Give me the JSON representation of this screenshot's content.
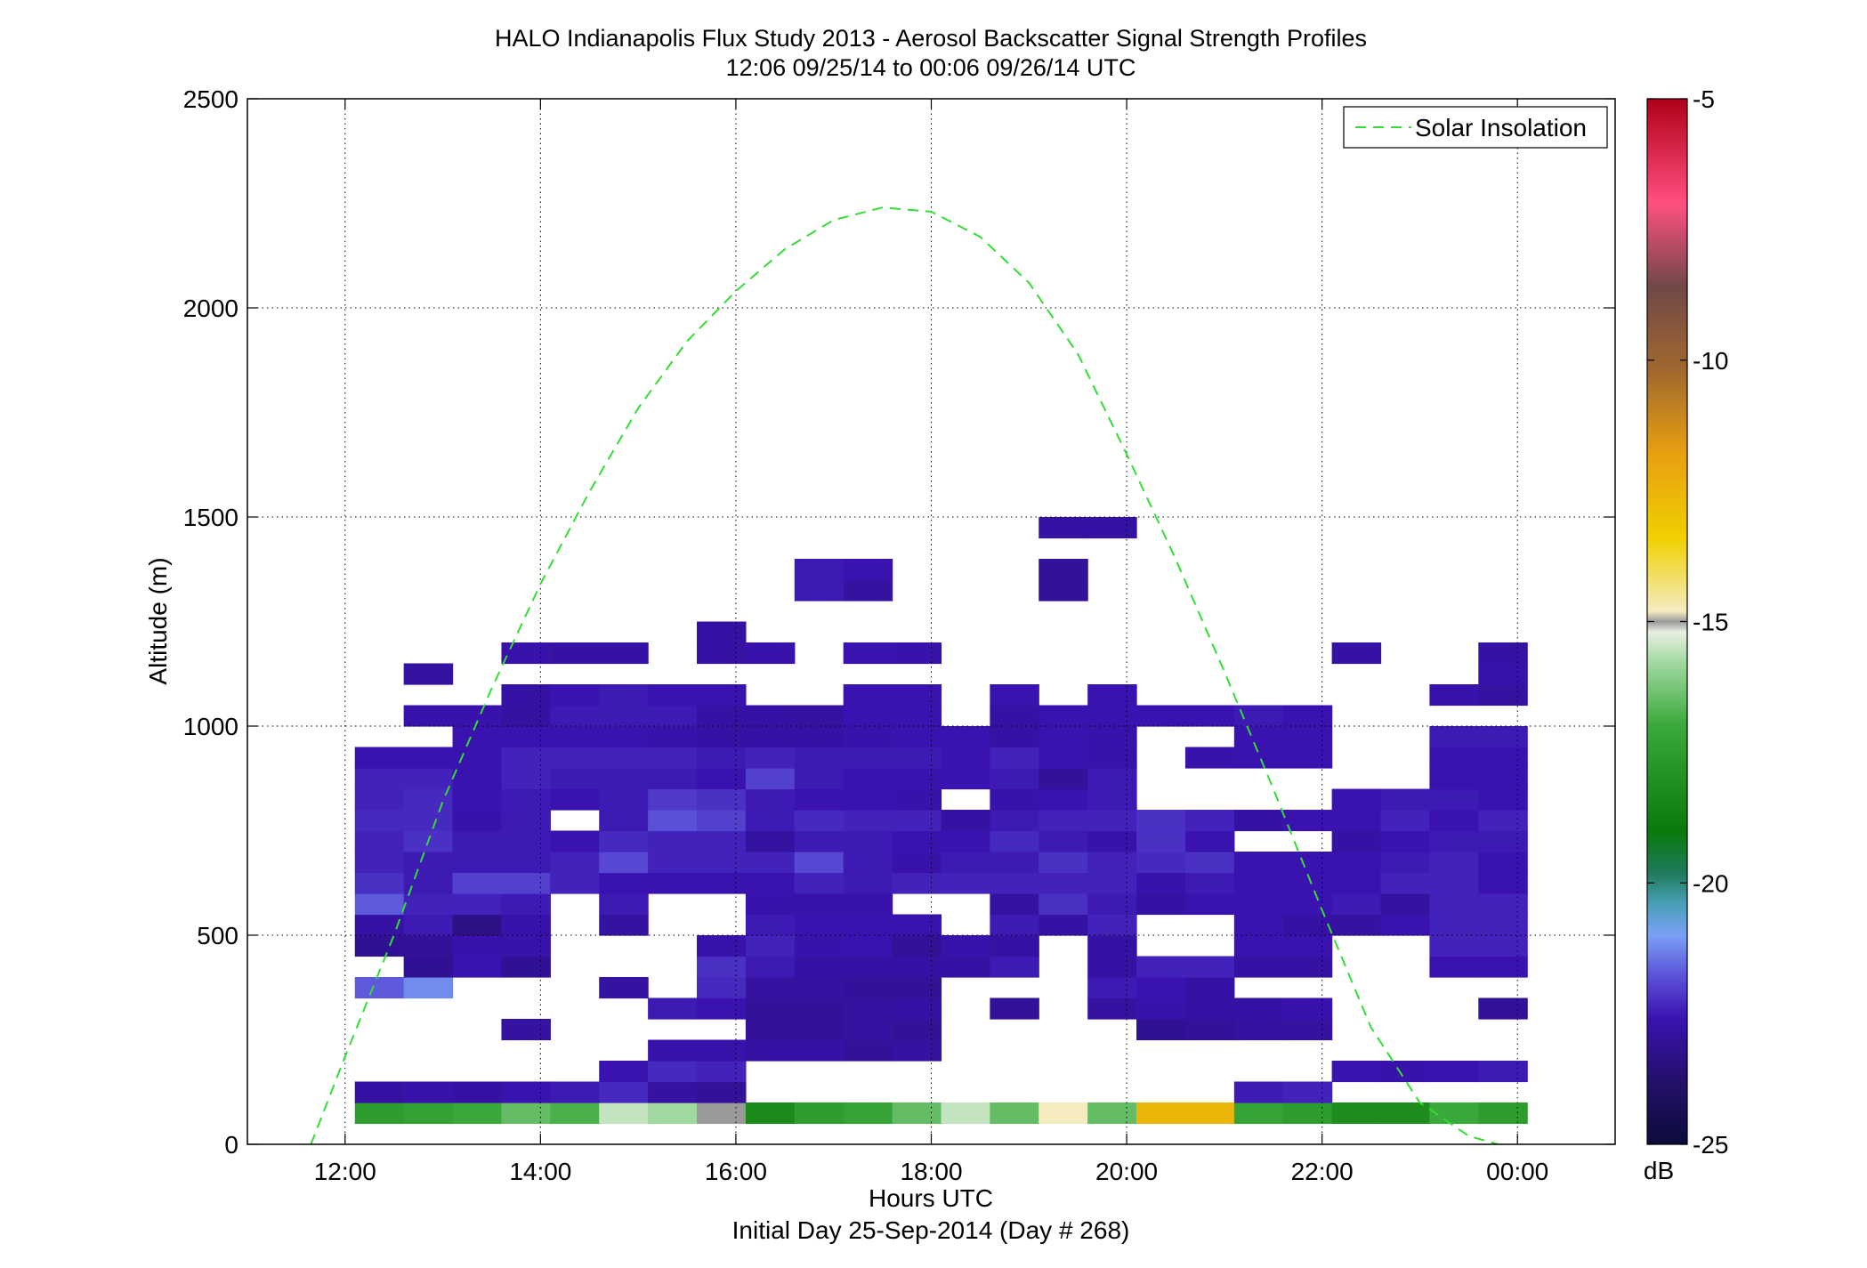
{
  "chart_data": {
    "type": "heatmap",
    "title": "HALO Indianapolis Flux Study 2013 - Aerosol Backscatter Signal Strength Profiles",
    "subtitle": "12:06 09/25/14 to 00:06 09/26/14  UTC",
    "xlabel": "Hours UTC",
    "xlabel2": "Initial Day 25-Sep-2014 (Day # 268)",
    "ylabel": "Altitude (m)",
    "xlim": [
      11,
      25
    ],
    "ylim": [
      0,
      2500
    ],
    "x_ticks": [
      12,
      14,
      16,
      18,
      20,
      22,
      24
    ],
    "x_tick_labels": [
      "12:00",
      "14:00",
      "16:00",
      "18:00",
      "20:00",
      "22:00",
      "00:00"
    ],
    "y_ticks": [
      0,
      500,
      1000,
      1500,
      2000,
      2500
    ],
    "y_tick_labels": [
      "0",
      "500",
      "1000",
      "1500",
      "2000",
      "2500"
    ],
    "grid": true,
    "legend": {
      "placement": "top-right",
      "entries": [
        "Solar Insolation"
      ]
    },
    "colorbar": {
      "label": "dB",
      "range": [
        -25,
        -5
      ],
      "ticks": [
        -25,
        -20,
        -15,
        -10,
        -5
      ],
      "tick_labels": [
        "-25",
        "-20",
        "-15",
        "-10",
        "-5"
      ]
    },
    "cells": {
      "x_start": 12.1,
      "x_step": 0.5,
      "y_start": 50,
      "y_step": 50,
      "value_units": "dB",
      "rows": [
        [
          -17.5,
          -17.3,
          -17.0,
          -16.5,
          -16.8,
          -15.5,
          -15.8,
          -15.0,
          -18.3,
          -17.5,
          -17.2,
          -16.5,
          -15.5,
          -16.5,
          -14.8,
          -16.5,
          -12.5,
          -12.5,
          -17.2,
          -17.5,
          -18.2,
          -18.2,
          -17.0,
          -17.5
        ],
        [
          -22.8,
          -22.7,
          -22.8,
          -22.6,
          -22.5,
          -22.3,
          -22.9,
          -23.0,
          null,
          null,
          null,
          null,
          null,
          null,
          null,
          null,
          null,
          null,
          -22.5,
          -22.4,
          null,
          null,
          null,
          null
        ],
        [
          null,
          null,
          null,
          null,
          null,
          -22.6,
          -22.3,
          -22.4,
          null,
          null,
          null,
          null,
          null,
          null,
          null,
          null,
          null,
          null,
          null,
          null,
          -22.6,
          -22.7,
          -22.6,
          -22.5
        ],
        [
          null,
          null,
          null,
          null,
          null,
          null,
          -22.7,
          -22.7,
          -22.8,
          -22.8,
          -23.0,
          -22.9,
          null,
          null,
          null,
          null,
          null,
          null,
          null,
          null,
          null,
          null,
          null,
          null
        ],
        [
          null,
          null,
          null,
          -22.9,
          null,
          null,
          null,
          null,
          -23.0,
          -23.0,
          -22.9,
          -23.0,
          null,
          null,
          null,
          null,
          -23.1,
          -23.0,
          -22.9,
          -22.9,
          null,
          null,
          null,
          null
        ],
        [
          null,
          null,
          null,
          null,
          null,
          null,
          -22.5,
          -22.6,
          -23.0,
          -23.0,
          -22.9,
          -22.8,
          null,
          -23.0,
          null,
          -22.9,
          -22.7,
          -22.8,
          -22.8,
          -22.7,
          null,
          null,
          null,
          -23.0
        ],
        [
          -21.7,
          -21.2,
          null,
          null,
          null,
          -22.9,
          null,
          -22.3,
          -22.9,
          -22.9,
          -23.0,
          -23.0,
          null,
          null,
          null,
          -22.5,
          -22.6,
          -22.8,
          null,
          null,
          null,
          null,
          null,
          null
        ],
        [
          null,
          -23.1,
          -22.6,
          -23.1,
          null,
          null,
          null,
          -22.2,
          -22.5,
          -22.8,
          -22.8,
          -22.8,
          -22.8,
          -22.5,
          null,
          -22.8,
          -22.4,
          -22.4,
          -22.8,
          -22.8,
          null,
          null,
          -22.6,
          -22.6
        ],
        [
          -23.1,
          -23.0,
          -22.7,
          -22.7,
          null,
          null,
          null,
          -22.7,
          -22.4,
          -22.7,
          -22.6,
          -23.0,
          -22.7,
          -22.8,
          null,
          -22.8,
          null,
          null,
          -22.6,
          -22.6,
          null,
          null,
          -22.4,
          -22.4
        ],
        [
          -22.8,
          -22.5,
          -23.3,
          -22.7,
          null,
          -22.9,
          null,
          null,
          -22.5,
          -22.6,
          -22.6,
          -22.6,
          null,
          -22.5,
          -22.8,
          -22.4,
          null,
          null,
          -22.6,
          -22.8,
          -22.9,
          -22.6,
          -22.4,
          -22.4
        ],
        [
          -21.7,
          -22.4,
          -22.4,
          -22.5,
          null,
          -22.5,
          null,
          null,
          -22.7,
          -22.7,
          -22.7,
          null,
          null,
          -22.9,
          -22.2,
          -22.5,
          -22.8,
          -22.6,
          -22.6,
          -22.6,
          -22.5,
          -22.9,
          -22.4,
          -22.4
        ],
        [
          -22.2,
          -22.5,
          -22.0,
          -22.0,
          -22.4,
          -22.6,
          -22.6,
          -22.6,
          -22.6,
          -22.4,
          -22.5,
          -22.4,
          -22.4,
          -22.4,
          -22.4,
          -22.4,
          -22.7,
          -22.5,
          -22.6,
          -22.6,
          -22.6,
          -22.4,
          -22.4,
          -22.6
        ],
        [
          -22.4,
          -22.5,
          -22.5,
          -22.5,
          -22.4,
          -21.9,
          -22.4,
          -22.4,
          -22.4,
          -21.9,
          -22.5,
          -22.7,
          -22.5,
          -22.5,
          -22.2,
          -22.4,
          -22.3,
          -22.2,
          -22.6,
          -22.6,
          -22.6,
          -22.5,
          -22.4,
          -22.6
        ],
        [
          -22.4,
          -22.2,
          -22.5,
          -22.5,
          -22.6,
          -22.3,
          -22.4,
          -22.4,
          -22.9,
          -22.5,
          -22.5,
          -22.6,
          -22.6,
          -22.3,
          -22.5,
          -22.7,
          -22.2,
          -22.6,
          null,
          null,
          -22.8,
          -22.6,
          -22.5,
          -22.5
        ],
        [
          -22.3,
          -22.3,
          -22.7,
          -22.5,
          null,
          -22.5,
          -21.8,
          -22.0,
          -22.5,
          -22.3,
          -22.4,
          -22.4,
          -22.8,
          -22.5,
          -22.4,
          -22.4,
          -22.2,
          -22.4,
          -22.8,
          -22.6,
          -22.6,
          -22.4,
          -22.6,
          -22.4
        ],
        [
          -22.4,
          -22.3,
          -22.6,
          -22.5,
          -22.6,
          -22.5,
          -22.1,
          -22.2,
          -22.5,
          -22.6,
          -22.6,
          -22.7,
          null,
          -22.7,
          -22.6,
          -22.5,
          null,
          null,
          null,
          null,
          -22.6,
          -22.5,
          -22.5,
          -22.6
        ],
        [
          -22.4,
          -22.4,
          -22.6,
          -22.4,
          -22.5,
          -22.5,
          -22.5,
          -22.6,
          -22.0,
          -22.5,
          -22.6,
          -22.6,
          -22.6,
          -22.5,
          -23.0,
          -22.5,
          null,
          null,
          null,
          null,
          null,
          null,
          -22.6,
          -22.6
        ],
        [
          -22.6,
          -22.6,
          -22.6,
          -22.4,
          -22.4,
          -22.4,
          -22.4,
          -22.5,
          -22.4,
          -22.5,
          -22.5,
          -22.5,
          -22.6,
          -22.4,
          -22.6,
          -22.7,
          null,
          -22.7,
          -22.6,
          -22.6,
          null,
          null,
          -22.6,
          -22.6
        ],
        [
          null,
          null,
          -22.6,
          -22.6,
          -22.6,
          -22.6,
          -22.7,
          -22.8,
          -22.8,
          -22.8,
          -22.7,
          -22.6,
          -22.6,
          -22.8,
          -22.6,
          -22.7,
          null,
          null,
          -22.6,
          -22.6,
          null,
          null,
          -22.5,
          -22.5
        ],
        [
          null,
          -22.7,
          -22.7,
          -22.9,
          -22.5,
          -22.5,
          -22.5,
          -22.8,
          -22.8,
          -22.9,
          -22.6,
          -22.6,
          null,
          -22.8,
          -22.6,
          -22.6,
          -22.6,
          -22.6,
          -22.5,
          -22.6,
          null,
          null,
          null,
          null
        ],
        [
          null,
          null,
          null,
          -22.8,
          -22.6,
          -22.5,
          -22.6,
          -22.6,
          null,
          null,
          -22.6,
          -22.6,
          null,
          -22.6,
          null,
          -22.6,
          null,
          null,
          null,
          null,
          null,
          null,
          -22.7,
          -22.9
        ],
        [
          null,
          -22.9,
          null,
          null,
          null,
          null,
          null,
          null,
          null,
          null,
          null,
          null,
          null,
          null,
          null,
          null,
          null,
          null,
          null,
          null,
          null,
          null,
          null,
          -22.7
        ],
        [
          null,
          null,
          null,
          -22.7,
          -22.8,
          -22.8,
          null,
          -22.8,
          -22.7,
          null,
          -22.6,
          -22.7,
          null,
          null,
          null,
          null,
          null,
          null,
          null,
          null,
          -22.8,
          null,
          null,
          -22.8
        ],
        [
          null,
          null,
          null,
          null,
          null,
          null,
          null,
          -22.8,
          null,
          null,
          null,
          null,
          null,
          null,
          null,
          null,
          null,
          null,
          null,
          null,
          null,
          null,
          null,
          null
        ],
        [
          null,
          null,
          null,
          null,
          null,
          null,
          null,
          null,
          null,
          null,
          null,
          null,
          null,
          null,
          null,
          null,
          null,
          null,
          null,
          null,
          null,
          null,
          null,
          null
        ],
        [
          null,
          null,
          null,
          null,
          null,
          null,
          null,
          null,
          null,
          -22.5,
          -22.9,
          null,
          null,
          null,
          -23.0,
          null,
          null,
          null,
          null,
          null,
          null,
          null,
          null,
          null
        ],
        [
          null,
          null,
          null,
          null,
          null,
          null,
          null,
          null,
          null,
          -22.5,
          -22.6,
          null,
          null,
          null,
          -23.0,
          null,
          null,
          null,
          null,
          null,
          null,
          null,
          null,
          null
        ],
        [
          null,
          null,
          null,
          null,
          null,
          null,
          null,
          null,
          null,
          null,
          null,
          null,
          null,
          null,
          null,
          null,
          null,
          null,
          null,
          null,
          null,
          null,
          null,
          null
        ],
        [
          null,
          null,
          null,
          null,
          null,
          null,
          null,
          null,
          null,
          null,
          null,
          null,
          null,
          null,
          -22.8,
          -22.8,
          null,
          null,
          null,
          null,
          null,
          null,
          null,
          null
        ]
      ]
    },
    "solar_insolation_curve": {
      "name": "Solar Insolation",
      "style": "dashed",
      "color": "#33dd33",
      "x": [
        11.65,
        12.0,
        12.5,
        13.0,
        13.5,
        14.0,
        14.5,
        15.0,
        15.5,
        16.0,
        16.5,
        17.0,
        17.5,
        18.0,
        18.5,
        19.0,
        19.5,
        20.0,
        20.5,
        21.0,
        21.5,
        22.0,
        22.5,
        23.0,
        23.5,
        23.8
      ],
      "y": [
        0,
        210,
        500,
        820,
        1090,
        1340,
        1560,
        1760,
        1920,
        2040,
        2140,
        2210,
        2240,
        2230,
        2170,
        2060,
        1890,
        1650,
        1400,
        1130,
        850,
        560,
        280,
        100,
        20,
        0
      ]
    }
  }
}
